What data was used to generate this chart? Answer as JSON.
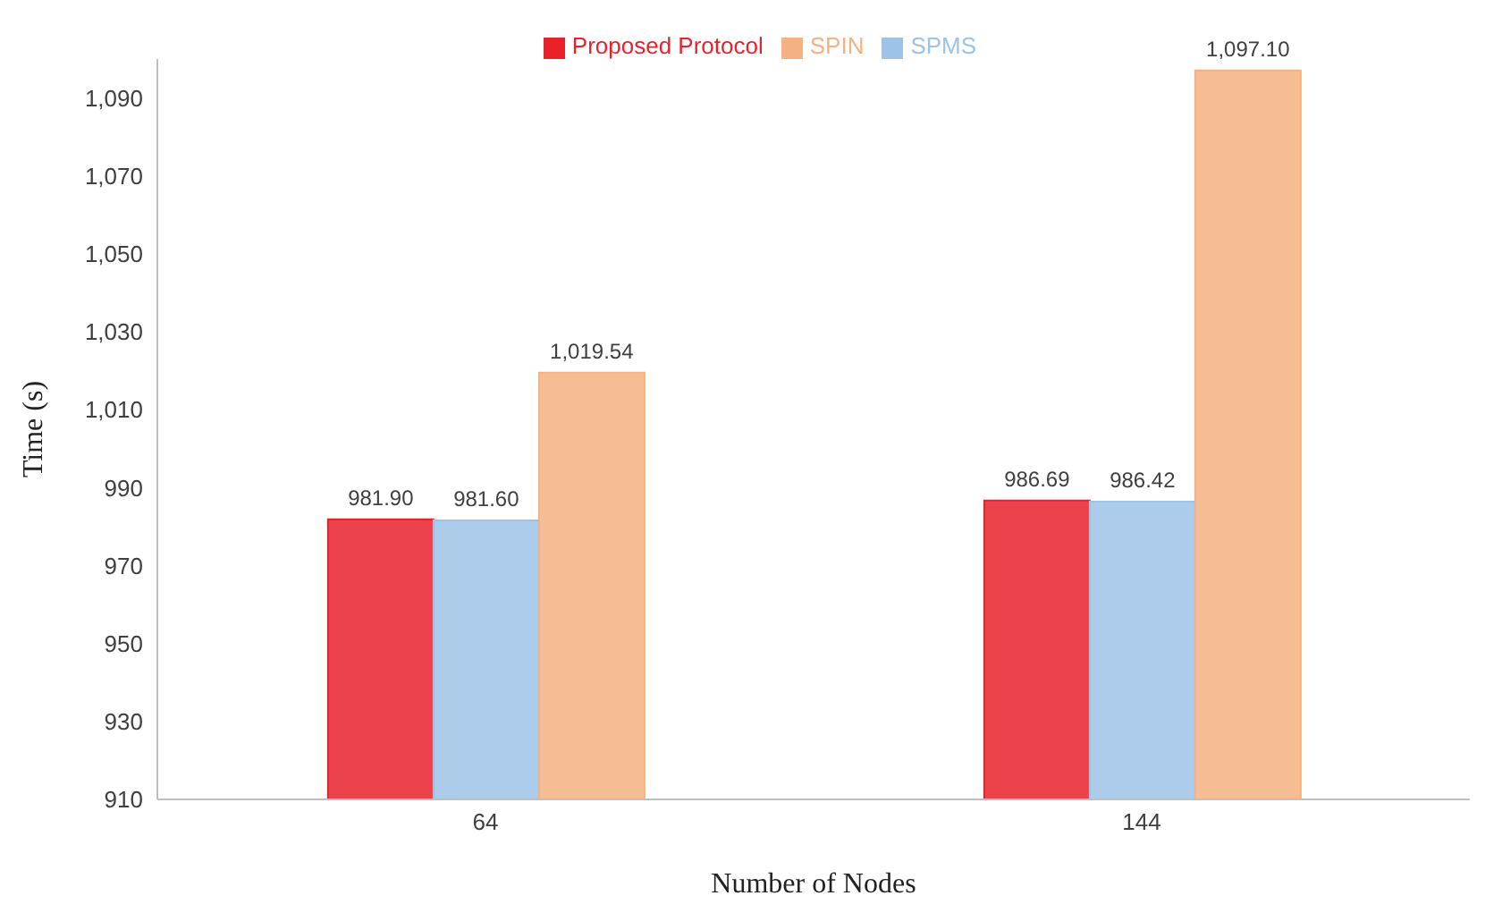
{
  "chart_data": {
    "type": "bar",
    "xlabel": "Number of Nodes",
    "ylabel": "Time (s)",
    "categories": [
      "64",
      "144"
    ],
    "series": [
      {
        "name": "Proposed Protocol",
        "color": "#e8212b",
        "values": [
          981.9,
          986.69
        ],
        "value_labels": [
          "981.90",
          "986.69"
        ]
      },
      {
        "name": "SPMS",
        "color": "#9dc3e6",
        "values": [
          981.6,
          986.42
        ],
        "value_labels": [
          "981.60",
          "986.42"
        ]
      },
      {
        "name": "SPIN",
        "color": "#f4b183",
        "values": [
          1019.54,
          1097.1
        ],
        "value_labels": [
          "1,019.54",
          "1,097.10"
        ]
      }
    ],
    "ylim": [
      910,
      1100
    ],
    "yticks": [
      910,
      930,
      950,
      970,
      990,
      {
        "value": 1010,
        "label": "1,010"
      },
      {
        "value": 1030,
        "label": "1,030"
      },
      {
        "value": 1050,
        "label": "1,050"
      },
      {
        "value": 1070,
        "label": "1,070"
      },
      {
        "value": 1090,
        "label": "1,090"
      }
    ],
    "grid": false,
    "legend": "top"
  }
}
